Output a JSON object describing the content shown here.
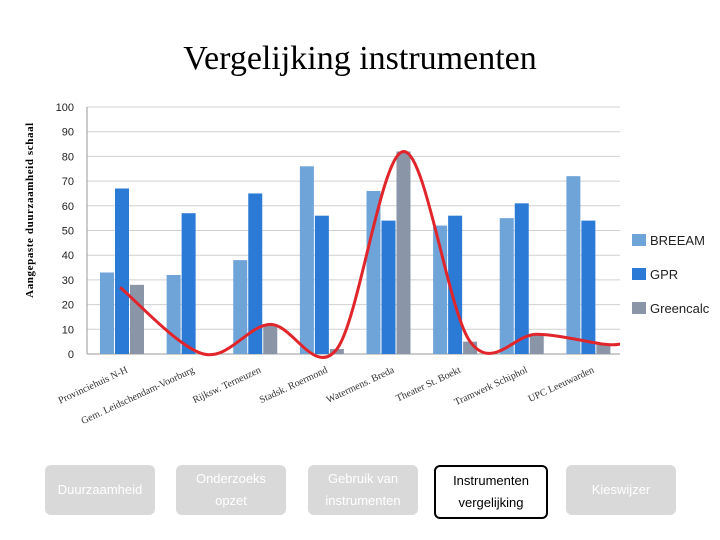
{
  "title": "Vergelijking instrumenten",
  "chart_data": {
    "type": "bar",
    "ylabel": "Aangepaste duurzaamheid schaal",
    "ylim": [
      0,
      100
    ],
    "yticks": [
      0,
      10,
      20,
      30,
      40,
      50,
      60,
      70,
      80,
      90,
      100
    ],
    "grid": true,
    "legend": "right",
    "categories": [
      "Provinciehuis N-H",
      "Gem. Leidschendam-Voorburg",
      "Rijksw. Terneuzen",
      "Stadsk. Roermond",
      "Watermens. Breda",
      "Theater St. Boekt",
      "Tramwerk Schiphol",
      "UPC Leeuwarden"
    ],
    "series": [
      {
        "name": "BREEAM",
        "color": "#6fa4d8",
        "values": [
          33,
          32,
          38,
          76,
          66,
          52,
          55,
          72
        ]
      },
      {
        "name": "GPR",
        "color": "#2b7bd6",
        "values": [
          67,
          57,
          65,
          56,
          54,
          56,
          61,
          54
        ]
      },
      {
        "name": "Greencalc",
        "color": "#8a95a8",
        "values": [
          28,
          0,
          12,
          2,
          82,
          5,
          8,
          4
        ]
      }
    ],
    "trend_series_color": "#e0252b"
  },
  "nav": {
    "items": [
      {
        "label": "Duurzaamheid"
      },
      {
        "label": "Onderzoeks\nopzet"
      },
      {
        "label": "Gebruik van\ninstrumenten"
      },
      {
        "label": "Instrumenten\nvergelijking"
      },
      {
        "label": "Kieswijzer"
      }
    ]
  }
}
